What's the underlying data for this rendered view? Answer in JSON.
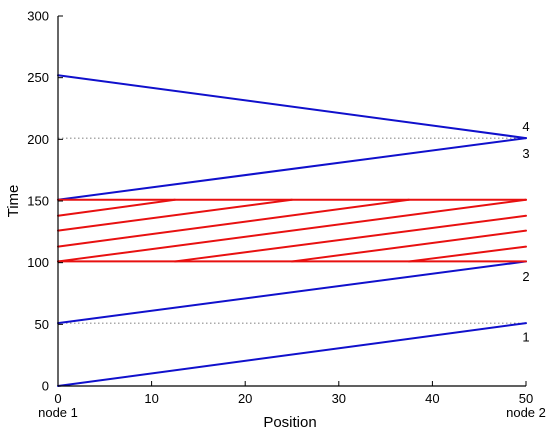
{
  "chart_data": {
    "type": "line",
    "xlabel": "Position",
    "ylabel": "Time",
    "xlim": [
      0,
      50
    ],
    "ylim": [
      0,
      300
    ],
    "x_ticks": [
      0,
      10,
      20,
      30,
      40,
      50
    ],
    "y_ticks": [
      0,
      50,
      100,
      150,
      200,
      250,
      300
    ],
    "grid": false,
    "node_labels": [
      {
        "text": "node 1",
        "x": 0
      },
      {
        "text": "node 2",
        "x": 50
      }
    ],
    "reference_lines": [
      {
        "y": 51,
        "style": "dotted"
      },
      {
        "y": 201,
        "style": "dotted"
      }
    ],
    "series": [
      {
        "color": "#1010cc",
        "segments": [
          [
            [
              0,
              0
            ],
            [
              50,
              51
            ]
          ],
          [
            [
              0,
              51
            ],
            [
              50,
              101
            ]
          ],
          [
            [
              0,
              151
            ],
            [
              50,
              201
            ]
          ],
          [
            [
              50,
              201
            ],
            [
              0,
              252
            ]
          ]
        ]
      },
      {
        "color": "#e81010",
        "segments": [
          [
            [
              0,
              101
            ],
            [
              50,
              101
            ]
          ],
          [
            [
              0,
              151
            ],
            [
              50,
              151
            ]
          ],
          [
            [
              0,
              101
            ],
            [
              50,
              151
            ]
          ],
          [
            [
              12.5,
              101
            ],
            [
              50,
              138
            ]
          ],
          [
            [
              25,
              101
            ],
            [
              50,
              126
            ]
          ],
          [
            [
              37.5,
              101
            ],
            [
              50,
              113
            ]
          ],
          [
            [
              0,
              113
            ],
            [
              37.5,
              151
            ]
          ],
          [
            [
              0,
              126
            ],
            [
              25,
              151
            ]
          ],
          [
            [
              0,
              138
            ],
            [
              12.5,
              151
            ]
          ]
        ]
      }
    ],
    "annotations": [
      {
        "text": "1",
        "x": 50,
        "y": 40
      },
      {
        "text": "2",
        "x": 50,
        "y": 89
      },
      {
        "text": "3",
        "x": 50,
        "y": 189
      },
      {
        "text": "4",
        "x": 50,
        "y": 211
      }
    ]
  }
}
